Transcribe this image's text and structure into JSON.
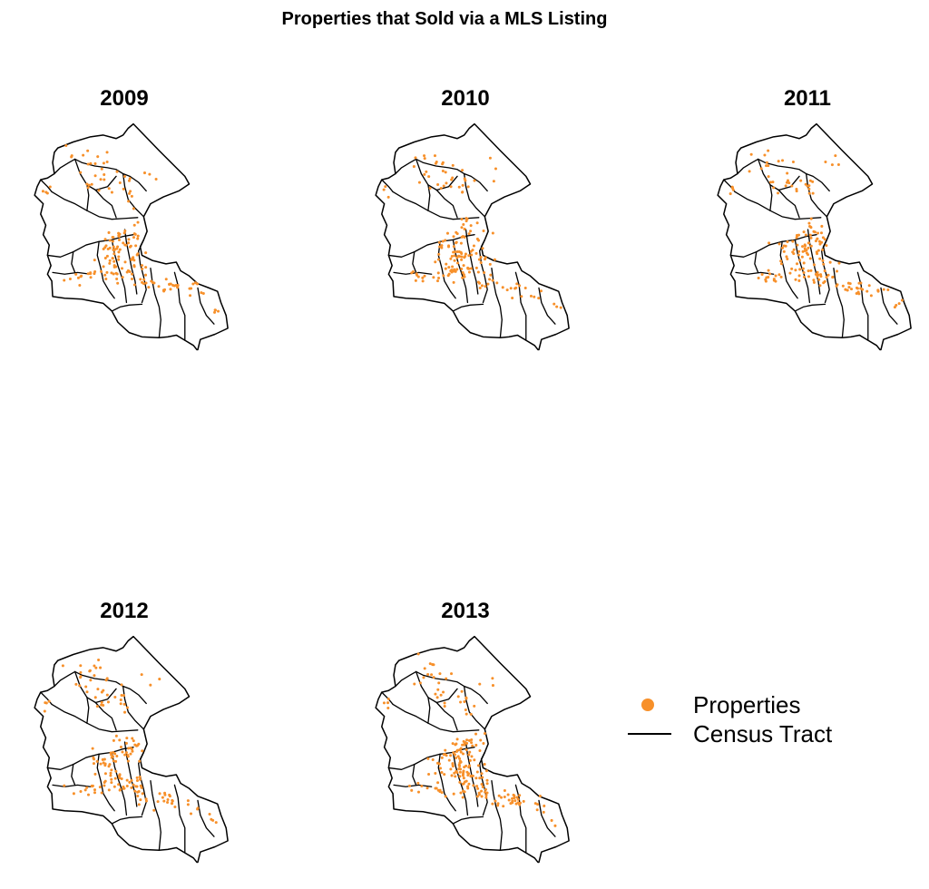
{
  "title": "Properties that Sold via a MLS Listing",
  "colors": {
    "properties": "#f7902a",
    "census_tract": "#000000"
  },
  "panels": [
    {
      "year": "2009"
    },
    {
      "year": "2010"
    },
    {
      "year": "2011"
    },
    {
      "year": "2012"
    },
    {
      "year": "2013"
    }
  ],
  "legend": {
    "items": [
      {
        "label": "Properties",
        "symbol": "orange-dot"
      },
      {
        "label": "Census Tract",
        "symbol": "black-line"
      }
    ]
  }
}
